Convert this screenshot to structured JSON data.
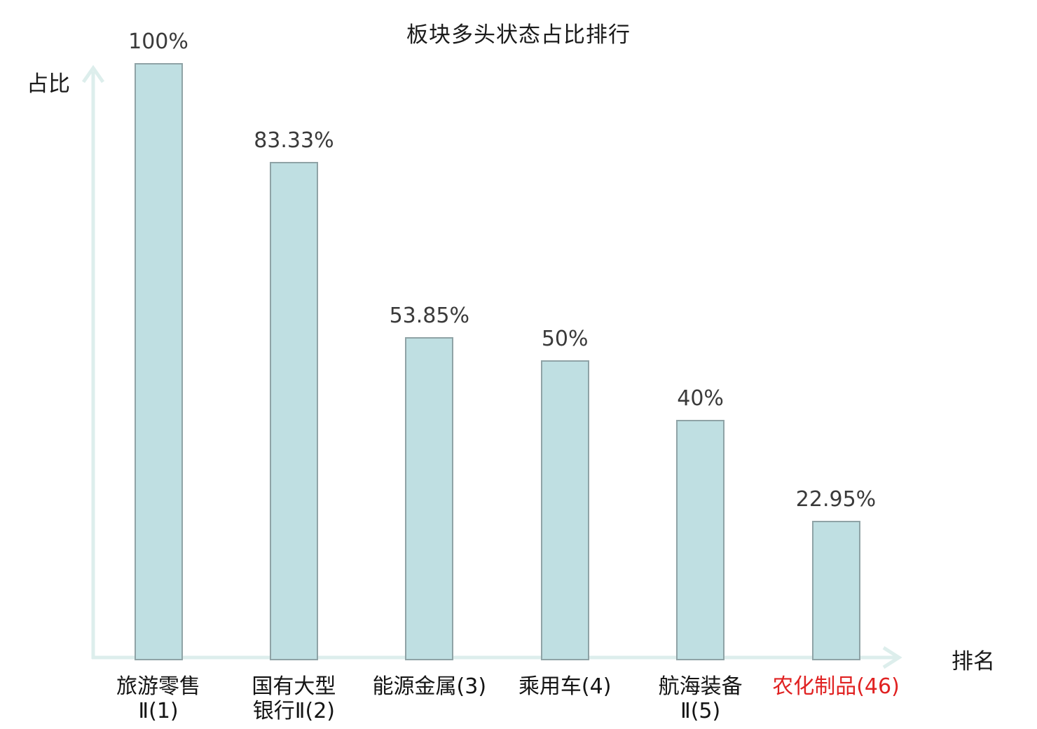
{
  "title": "板块多头状态占比排行",
  "colors": {
    "background": "#ffffff",
    "bar_fill": "#bfdfe2",
    "bar_border": "#8fa3a6",
    "axis": "#ddeeec",
    "title_text": "#1a1a1a",
    "value_label_text": "#3a3a3a",
    "category_label_text": "#141414",
    "highlight_label_text": "#e02222"
  },
  "chart_data": {
    "type": "bar",
    "title": "板块多头状态占比排行",
    "xlabel": "排名",
    "ylabel": "占比",
    "ylim": [
      0,
      100
    ],
    "grid": false,
    "legend": false,
    "categories": [
      "旅游零售Ⅱ(1)",
      "国有大型银行Ⅱ(2)",
      "能源金属(3)",
      "乘用车(4)",
      "航海装备Ⅱ(5)",
      "农化制品(46)"
    ],
    "values": [
      100,
      83.33,
      53.85,
      50,
      40,
      22.95
    ],
    "bars": [
      {
        "category_lines": [
          "旅游零售",
          "Ⅱ(1)"
        ],
        "value": 100,
        "value_label": "100%",
        "highlight": false
      },
      {
        "category_lines": [
          "国有大型",
          "银行Ⅱ(2)"
        ],
        "value": 83.33,
        "value_label": "83.33%",
        "highlight": false
      },
      {
        "category_lines": [
          "能源金属(3)"
        ],
        "value": 53.85,
        "value_label": "53.85%",
        "highlight": false
      },
      {
        "category_lines": [
          "乘用车(4)"
        ],
        "value": 50,
        "value_label": "50%",
        "highlight": false
      },
      {
        "category_lines": [
          "航海装备",
          "Ⅱ(5)"
        ],
        "value": 40,
        "value_label": "40%",
        "highlight": false
      },
      {
        "category_lines": [
          "农化制品(46)"
        ],
        "value": 22.95,
        "value_label": "22.95%",
        "highlight": true
      }
    ]
  }
}
